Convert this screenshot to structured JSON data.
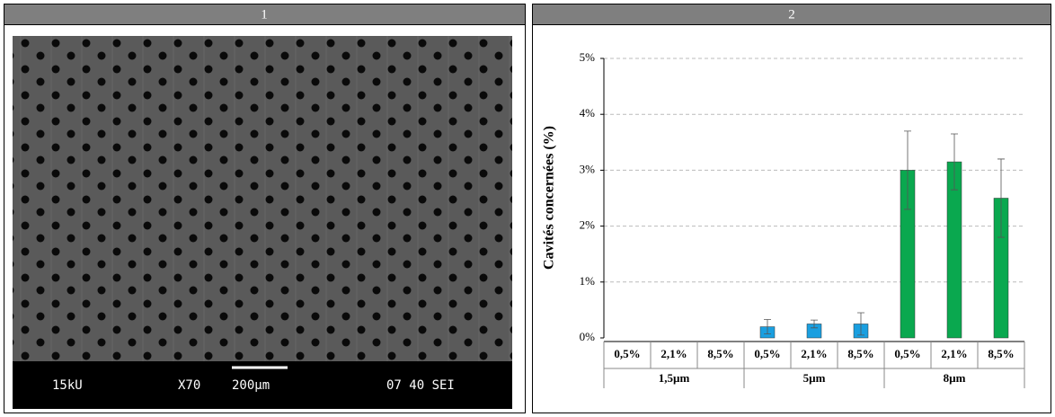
{
  "panels": [
    {
      "label": "1",
      "image": {
        "voltage": "15kU",
        "magnification": "X70",
        "scale": "200µm",
        "info": "07 40 SEI"
      }
    },
    {
      "label": "2"
    }
  ],
  "chart_data": {
    "type": "bar",
    "y_label": "Cavités concernées (%)",
    "categories": [
      "0,5%",
      "2,1%",
      "8,5%"
    ],
    "series": [
      {
        "name": "1,5µm",
        "values": [
          0,
          0,
          0
        ],
        "errors": [
          0,
          0,
          0
        ]
      },
      {
        "name": "5µm",
        "color": "#1a9fe0",
        "values": [
          0.2,
          0.25,
          0.25
        ],
        "errors": [
          0.13,
          0.07,
          0.2
        ]
      },
      {
        "name": "8µm",
        "color": "#0aa84f",
        "values": [
          3.0,
          3.15,
          2.5
        ],
        "errors": [
          0.7,
          0.5,
          0.7
        ]
      }
    ],
    "ylim": [
      0,
      5
    ],
    "yticks": [
      {
        "value": 0,
        "label": "0%"
      },
      {
        "value": 1,
        "label": "1%"
      },
      {
        "value": 2,
        "label": "2%"
      },
      {
        "value": 3,
        "label": "3%"
      },
      {
        "value": 4,
        "label": "4%"
      },
      {
        "value": 5,
        "label": "5%"
      }
    ],
    "grid": true
  }
}
